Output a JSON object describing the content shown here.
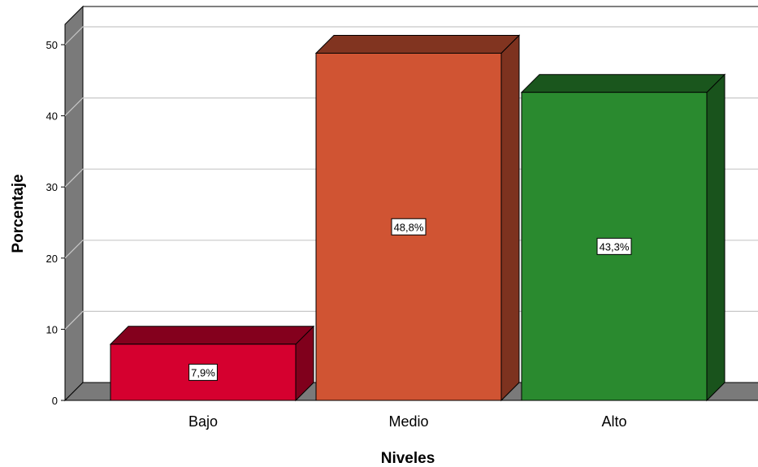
{
  "chart_data": {
    "type": "bar",
    "categories": [
      "Bajo",
      "Medio",
      "Alto"
    ],
    "values": [
      7.9,
      48.8,
      43.3
    ],
    "data_labels": [
      "7,9%",
      "48,8%",
      "43,3%"
    ],
    "colors": [
      "#d5002f",
      "#d05433",
      "#2a8a2f"
    ],
    "xlabel": "Niveles",
    "ylabel": "Porcentaje",
    "ylim": [
      0,
      50
    ],
    "yticks": [
      "0",
      "10",
      "20",
      "30",
      "40",
      "50"
    ],
    "grid": true,
    "style": "3d-bar"
  }
}
